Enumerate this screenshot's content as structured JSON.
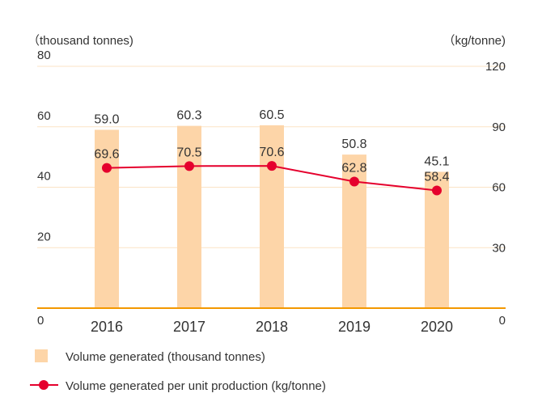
{
  "chart_data": {
    "type": "bar+line",
    "categories": [
      "2016",
      "2017",
      "2018",
      "2019",
      "2020"
    ],
    "y_left": {
      "unit_label": "（thousand tonnes)",
      "ticks": [
        "80",
        "60",
        "40",
        "20",
        "0"
      ],
      "range": [
        0,
        80
      ]
    },
    "y_right": {
      "unit_label": "（kg/tonne)",
      "ticks": [
        "120",
        "90",
        "60",
        "30",
        "0"
      ],
      "range": [
        0,
        120
      ]
    },
    "grid": true,
    "series": [
      {
        "name": "Volume generated (thousand tonnes)",
        "type": "bar",
        "axis": "left",
        "color": "#fdd5a8",
        "values": [
          59.0,
          60.3,
          60.5,
          50.8,
          45.1
        ],
        "labels": [
          "59.0",
          "60.3",
          "60.5",
          "50.8",
          "45.1"
        ]
      },
      {
        "name": "Volume generated per unit production (kg/tonne)",
        "type": "line",
        "axis": "right",
        "color": "#e5002d",
        "values": [
          69.6,
          70.5,
          70.6,
          62.8,
          58.4
        ],
        "labels": [
          "69.6",
          "70.5",
          "70.6",
          "62.8",
          "58.4"
        ]
      }
    ],
    "legend_position": "bottom-left",
    "baseline_color": "#f39800"
  }
}
